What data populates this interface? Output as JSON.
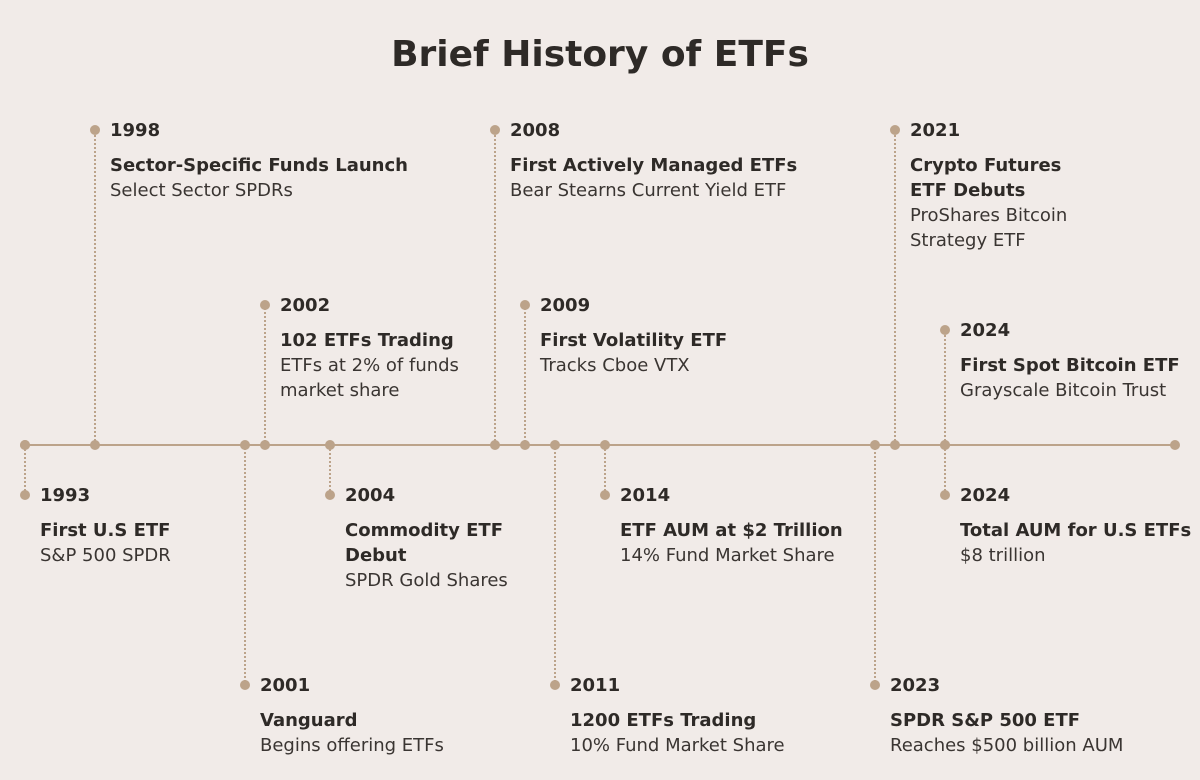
{
  "title": "Brief History of ETFs",
  "events": [
    {
      "year": "1993",
      "headline": "First U.S ETF",
      "detail": "S&P 500 SPDR",
      "placement": "below",
      "tier": 1
    },
    {
      "year": "1998",
      "headline": "Sector-Specific Funds Launch",
      "detail": "Select Sector SPDRs",
      "placement": "above",
      "tier": 3
    },
    {
      "year": "2001",
      "headline": "Vanguard",
      "detail": "Begins offering ETFs",
      "placement": "below",
      "tier": 3
    },
    {
      "year": "2002",
      "headline": "102 ETFs Trading",
      "detail": "ETFs at 2% of funds\nmarket share",
      "placement": "above",
      "tier": 2
    },
    {
      "year": "2004",
      "headline": "Commodity ETF\nDebut",
      "detail": "SPDR Gold Shares",
      "placement": "below",
      "tier": 1
    },
    {
      "year": "2008",
      "headline": "First Actively Managed ETFs",
      "detail": "Bear Stearns Current Yield ETF",
      "placement": "above",
      "tier": 3
    },
    {
      "year": "2009",
      "headline": "First Volatility ETF",
      "detail": "Tracks Cboe VTX",
      "placement": "above",
      "tier": 2
    },
    {
      "year": "2011",
      "headline": "1200 ETFs Trading",
      "detail": "10% Fund Market Share",
      "placement": "below",
      "tier": 3
    },
    {
      "year": "2014",
      "headline": "ETF AUM at $2 Trillion",
      "detail": "14% Fund Market Share",
      "placement": "below",
      "tier": 1
    },
    {
      "year": "2021",
      "headline": "Crypto Futures\nETF Debuts",
      "detail": "ProShares Bitcoin\nStrategy ETF",
      "placement": "above",
      "tier": 3
    },
    {
      "year": "2023",
      "headline": "SPDR S&P 500 ETF",
      "detail": "Reaches $500 billion AUM",
      "placement": "below",
      "tier": 3
    },
    {
      "year": "2024",
      "headline": "First Spot Bitcoin ETF",
      "detail": "Grayscale Bitcoin Trust",
      "placement": "above",
      "tier": 1
    },
    {
      "year": "2024",
      "headline": "Total AUM for U.S ETFs",
      "detail": "$8 trillion",
      "placement": "below",
      "tier": 1
    }
  ],
  "colors": {
    "background": "#f1ebe8",
    "accent": "#bca38a",
    "text": "#2e2a27"
  }
}
